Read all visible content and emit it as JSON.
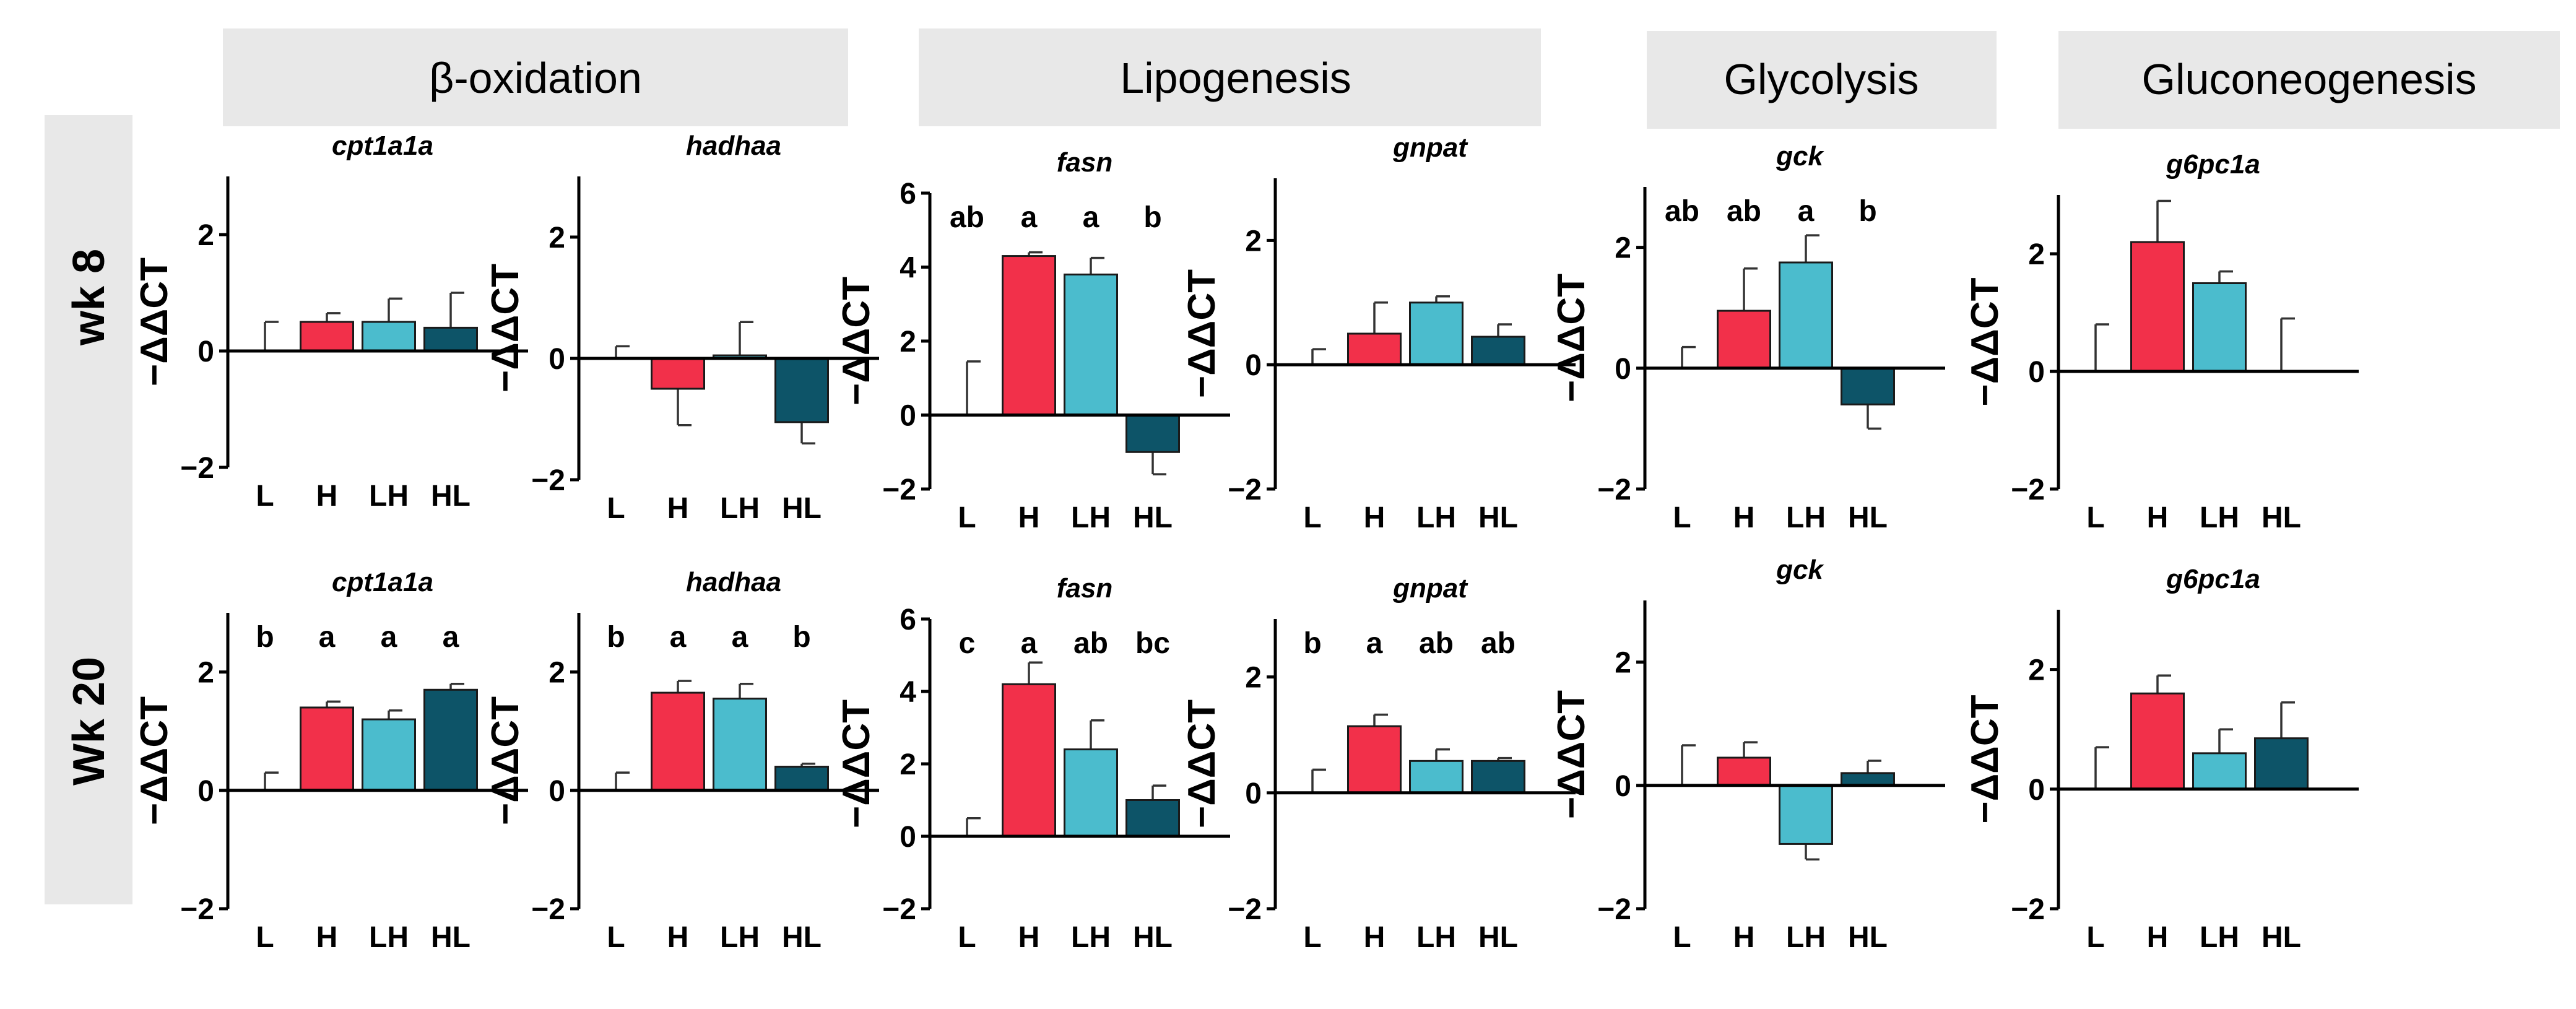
{
  "colors": {
    "L": "#ffffff",
    "H": "#f2304a",
    "LH": "#4bbccd",
    "HL": "#0d5468",
    "header_bg": "#e8e8e8"
  },
  "groups": [
    {
      "id": "beta-oxidation",
      "label": "β-oxidation"
    },
    {
      "id": "lipogenesis",
      "label": "Lipogenesis"
    },
    {
      "id": "glycolysis",
      "label": "Glycolysis"
    },
    {
      "id": "gluconeogenesis",
      "label": "Gluconeogenesis"
    }
  ],
  "rows": [
    {
      "id": "wk8",
      "label": "wk 8"
    },
    {
      "id": "wk20",
      "label": "Wk 20"
    }
  ],
  "chart_data": [
    {
      "type": "bar",
      "title": "cpt1a1a",
      "row": "wk 8",
      "group": "β-oxidation",
      "ylabel": "−ΔΔCT",
      "ylim": [
        -2,
        3
      ],
      "yticks": [
        -2,
        0,
        2
      ],
      "categories": [
        "L",
        "H",
        "LH",
        "HL"
      ],
      "values": [
        0,
        0.5,
        0.5,
        0.4
      ],
      "errors": [
        0.5,
        0.15,
        0.4,
        0.6
      ],
      "annotations": []
    },
    {
      "type": "bar",
      "title": "hadhaa",
      "row": "wk 8",
      "group": "β-oxidation",
      "ylabel": "−ΔΔCT",
      "ylim": [
        -2,
        3
      ],
      "yticks": [
        -2,
        0,
        2
      ],
      "categories": [
        "L",
        "H",
        "LH",
        "HL"
      ],
      "values": [
        0,
        -0.5,
        0.05,
        -1.05
      ],
      "errors": [
        0.2,
        0.6,
        0.55,
        0.35
      ],
      "annotations": []
    },
    {
      "type": "bar",
      "title": "fasn",
      "row": "wk 8",
      "group": "Lipogenesis",
      "ylabel": "−ΔΔCT",
      "ylim": [
        -2,
        6
      ],
      "yticks": [
        -2,
        0,
        2,
        4,
        6
      ],
      "categories": [
        "L",
        "H",
        "LH",
        "HL"
      ],
      "values": [
        0,
        4.3,
        3.8,
        -1.0
      ],
      "errors": [
        1.45,
        0.1,
        0.45,
        0.6
      ],
      "annotations": [
        "ab",
        "a",
        "a",
        "b"
      ]
    },
    {
      "type": "bar",
      "title": "gnpat",
      "row": "wk 8",
      "group": "Lipogenesis",
      "ylabel": "−ΔΔCT",
      "ylim": [
        -2,
        3
      ],
      "yticks": [
        -2,
        0,
        2
      ],
      "categories": [
        "L",
        "H",
        "LH",
        "HL"
      ],
      "values": [
        0,
        0.5,
        1.0,
        0.45
      ],
      "errors": [
        0.25,
        0.5,
        0.1,
        0.2
      ],
      "annotations": []
    },
    {
      "type": "bar",
      "title": "gck",
      "row": "wk 8",
      "group": "Glycolysis",
      "ylabel": "−ΔΔCT",
      "ylim": [
        -2,
        3
      ],
      "yticks": [
        -2,
        0,
        2
      ],
      "categories": [
        "L",
        "H",
        "LH",
        "HL"
      ],
      "values": [
        0,
        0.95,
        1.75,
        -0.6
      ],
      "errors": [
        0.35,
        0.7,
        0.45,
        0.4
      ],
      "annotations": [
        "ab",
        "ab",
        "a",
        "b"
      ]
    },
    {
      "type": "bar",
      "title": "g6pc1a",
      "row": "wk 8",
      "group": "Gluconeogenesis",
      "ylabel": "−ΔΔCT",
      "ylim": [
        -2,
        3
      ],
      "yticks": [
        -2,
        0,
        2
      ],
      "categories": [
        "L",
        "H",
        "LH",
        "HL"
      ],
      "values": [
        0,
        2.2,
        1.5,
        0
      ],
      "errors": [
        0.8,
        0.7,
        0.2,
        0.9
      ],
      "annotations": []
    },
    {
      "type": "bar",
      "title": "cpt1a1a",
      "row": "Wk 20",
      "group": "β-oxidation",
      "ylabel": "−ΔΔCT",
      "ylim": [
        -2,
        3
      ],
      "yticks": [
        -2,
        0,
        2
      ],
      "categories": [
        "L",
        "H",
        "LH",
        "HL"
      ],
      "values": [
        0,
        1.4,
        1.2,
        1.7
      ],
      "errors": [
        0.3,
        0.1,
        0.15,
        0.1
      ],
      "annotations": [
        "b",
        "a",
        "a",
        "a"
      ]
    },
    {
      "type": "bar",
      "title": "hadhaa",
      "row": "Wk 20",
      "group": "β-oxidation",
      "ylabel": "−ΔΔCT",
      "ylim": [
        -2,
        3
      ],
      "yticks": [
        -2,
        0,
        2
      ],
      "categories": [
        "L",
        "H",
        "LH",
        "HL"
      ],
      "values": [
        0,
        1.65,
        1.55,
        0.4
      ],
      "errors": [
        0.3,
        0.2,
        0.25,
        0.05
      ],
      "annotations": [
        "b",
        "a",
        "a",
        "b"
      ]
    },
    {
      "type": "bar",
      "title": "fasn",
      "row": "Wk 20",
      "group": "Lipogenesis",
      "ylabel": "−ΔΔCT",
      "ylim": [
        -2,
        6
      ],
      "yticks": [
        -2,
        0,
        2,
        4,
        6
      ],
      "categories": [
        "L",
        "H",
        "LH",
        "HL"
      ],
      "values": [
        0,
        4.2,
        2.4,
        1.0
      ],
      "errors": [
        0.5,
        0.6,
        0.8,
        0.4
      ],
      "annotations": [
        "c",
        "a",
        "ab",
        "bc"
      ]
    },
    {
      "type": "bar",
      "title": "gnpat",
      "row": "Wk 20",
      "group": "Lipogenesis",
      "ylabel": "−ΔΔCT",
      "ylim": [
        -2,
        3
      ],
      "yticks": [
        -2,
        0,
        2
      ],
      "categories": [
        "L",
        "H",
        "LH",
        "HL"
      ],
      "values": [
        0,
        1.15,
        0.55,
        0.55
      ],
      "errors": [
        0.4,
        0.2,
        0.2,
        0.05
      ],
      "annotations": [
        "b",
        "a",
        "ab",
        "ab"
      ]
    },
    {
      "type": "bar",
      "title": "gck",
      "row": "Wk 20",
      "group": "Glycolysis",
      "ylabel": "−ΔΔCT",
      "ylim": [
        -2,
        3
      ],
      "yticks": [
        -2,
        0,
        2
      ],
      "categories": [
        "L",
        "H",
        "LH",
        "HL"
      ],
      "values": [
        0,
        0.45,
        -0.95,
        0.2
      ],
      "errors": [
        0.65,
        0.25,
        0.25,
        0.2
      ],
      "annotations": []
    },
    {
      "type": "bar",
      "title": "g6pc1a",
      "row": "Wk 20",
      "group": "Gluconeogenesis",
      "ylabel": "−ΔΔCT",
      "ylim": [
        -2,
        3
      ],
      "yticks": [
        -2,
        0,
        2
      ],
      "categories": [
        "L",
        "H",
        "LH",
        "HL"
      ],
      "values": [
        0,
        1.6,
        0.6,
        0.85
      ],
      "errors": [
        0.7,
        0.3,
        0.4,
        0.6
      ],
      "annotations": []
    }
  ]
}
